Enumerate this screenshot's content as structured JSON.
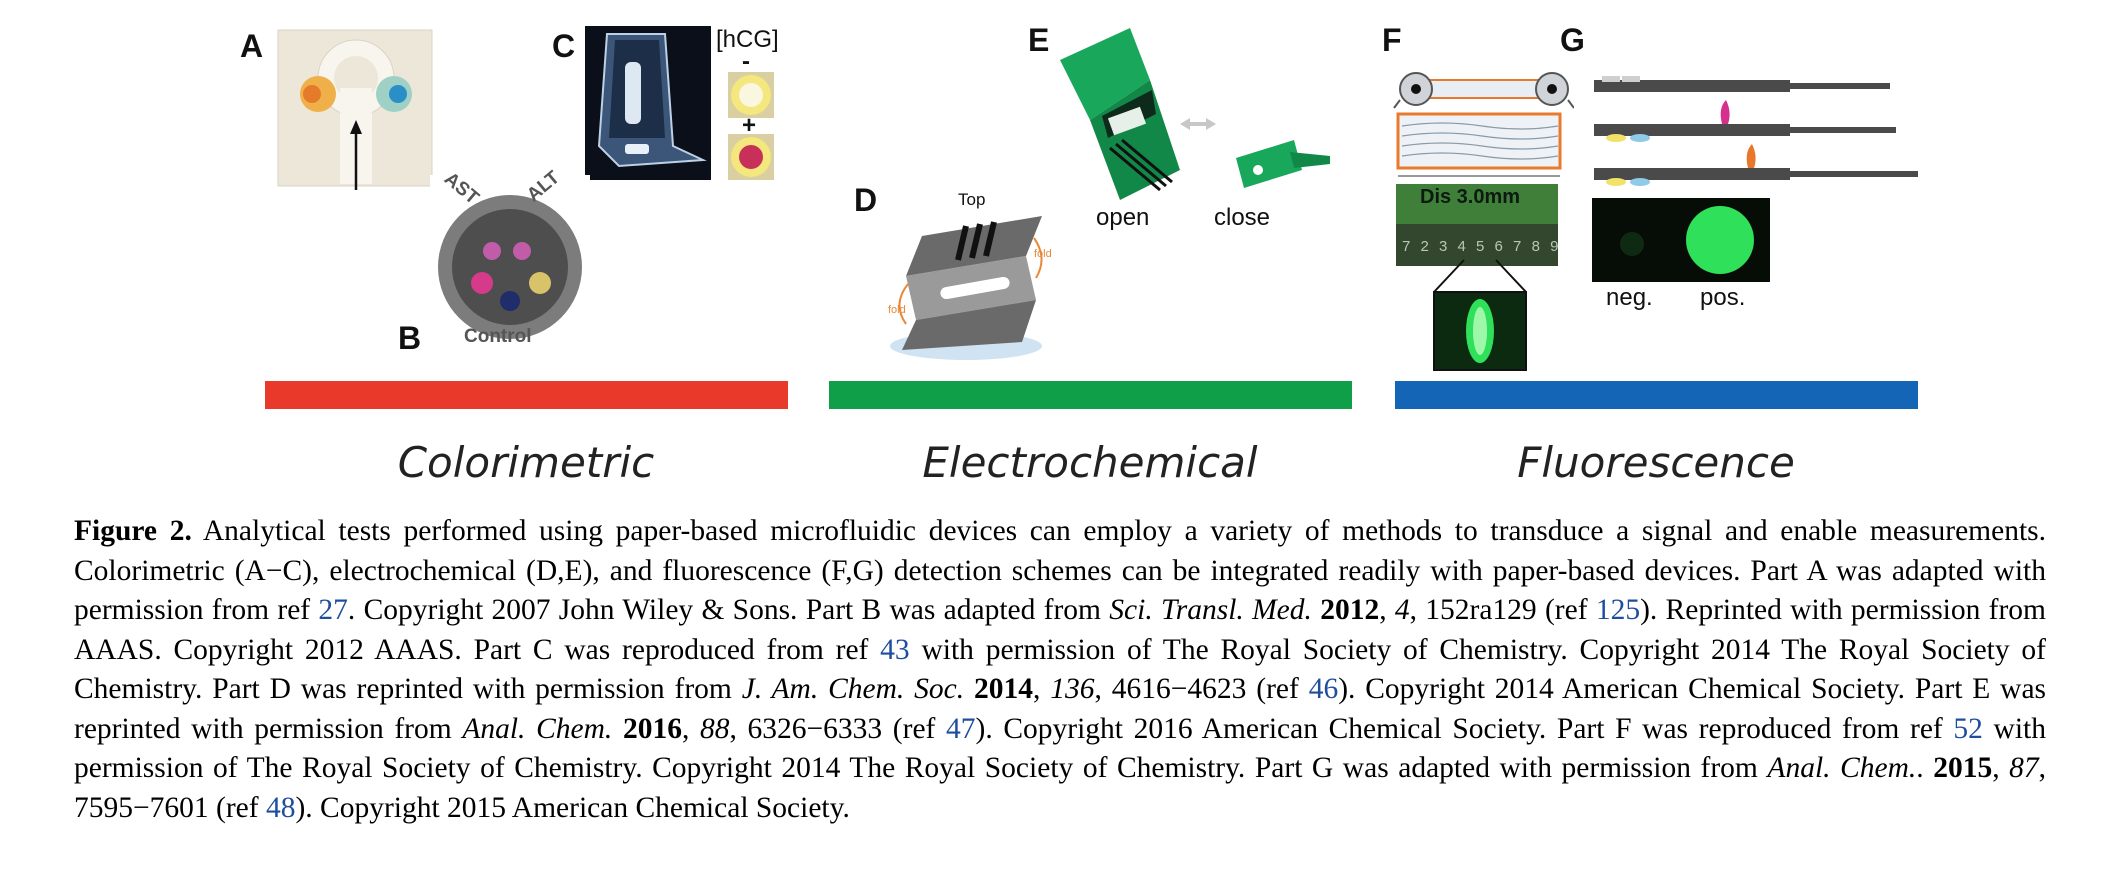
{
  "figure": {
    "panels": {
      "A": "A",
      "B": "B",
      "C": "C",
      "D": "D",
      "E": "E",
      "F": "F",
      "G": "G"
    },
    "labels": {
      "hcg": "[hCG]",
      "minus": "-",
      "plus": "+",
      "ast": "AST",
      "alt": "ALT",
      "control": "Control",
      "top": "Top",
      "fold": "fold",
      "open": "open",
      "close": "close",
      "dis": "Dis 3.0mm",
      "neg": "neg.",
      "pos": "pos.",
      "ruler": "7 2 3 4 5 6 7 8 9"
    },
    "categories": [
      "Colorimetric",
      "Electrochemical",
      "Fluorescence"
    ],
    "colors": {
      "colorimetric": "#e8392b",
      "electrochemical": "#0e9f48",
      "fluorescence": "#1565b7",
      "device_green": "#19a85b",
      "fluor_green": "#2fe05a",
      "link_blue": "#1f4e9e"
    }
  },
  "caption": {
    "fig_label": "Figure 2.",
    "s1": " Analytical tests performed using paper-based microfluidic devices can employ a variety of methods to transduce a signal and enable measurements. Colorimetric (A−C), electrochemical (D,E), and fluorescence (F,G) detection schemes can be integrated readily with paper-based devices. Part A was adapted with permission from ref ",
    "r27": "27",
    "s2": ". Copyright 2007 John Wiley & Sons. Part B was adapted from ",
    "j1": "Sci. Transl. Med.",
    "y1": "2012",
    "v1": "4",
    "s3": ", 152ra129 (ref ",
    "r125": "125",
    "s4": "). Reprinted with permission from AAAS. Copyright 2012 AAAS. Part C was reproduced from ref ",
    "r43": "43",
    "s5": " with permission of The Royal Society of Chemistry. Copyright 2014 The Royal Society of Chemistry. Part D was reprinted with permission from ",
    "j2": "J. Am. Chem. Soc.",
    "y2": "2014",
    "v2": "136",
    "s6": ", 4616−4623 (ref ",
    "r46": "46",
    "s7": "). Copyright 2014 American Chemical Society. Part E was reprinted with permission from ",
    "j3": "Anal. Chem.",
    "y3": "2016",
    "v3": "88",
    "s8": ", 6326−6333 (ref ",
    "r47": "47",
    "s9": "). Copyright 2016 American Chemical Society. Part F was reproduced from ref ",
    "r52": "52",
    "s10": " with permission of The Royal Society of Chemistry. Copyright 2014 The Royal Society of Chemistry. Part G was adapted with permission from ",
    "j4": "Anal. Chem.",
    "y4": "2015",
    "v4": "87",
    "s11": ", 7595−7601 (ref ",
    "r48": "48",
    "s12": "). Copyright 2015 American Chemical Society."
  }
}
